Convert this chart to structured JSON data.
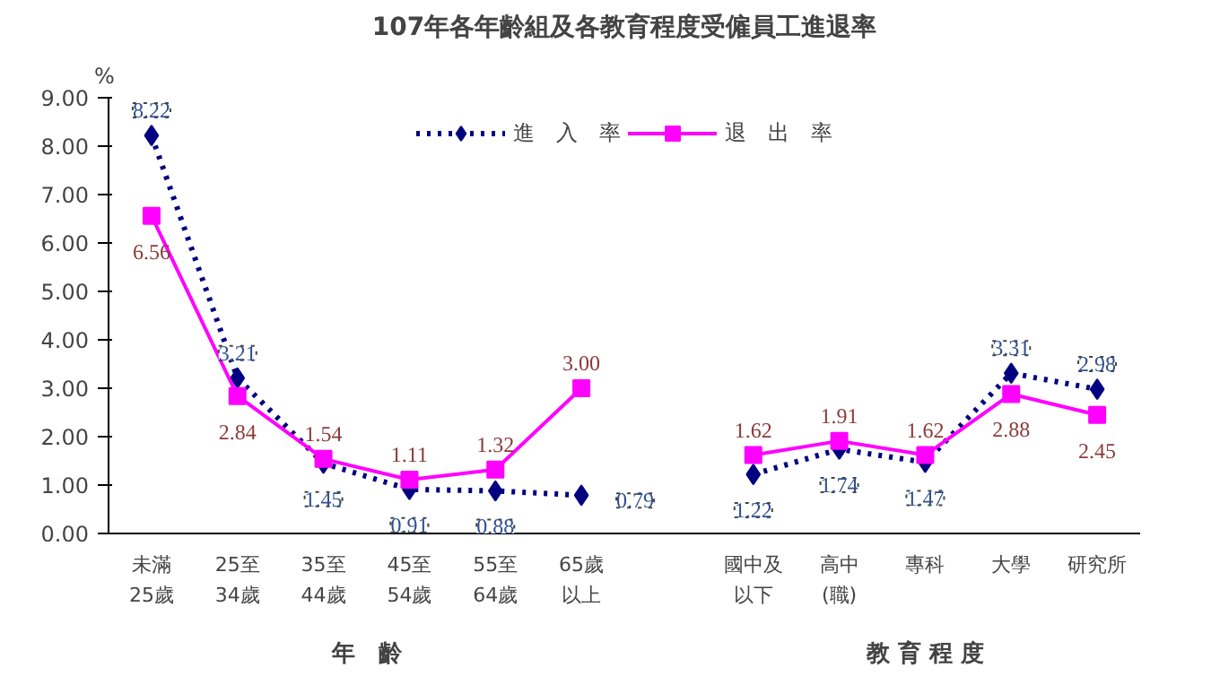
{
  "chart_data": {
    "type": "line",
    "title": "107年各年齡組及各教育程度受僱員工進退率",
    "ylabel": "%",
    "categories": [
      "未滿25歲",
      "25至34歲",
      "35至44歲",
      "45至54歲",
      "55至64歲",
      "65歲以上",
      null,
      "國中及以下",
      "高中(職)",
      "專科",
      "大學",
      "研究所"
    ],
    "series": [
      {
        "name": "進　入　率",
        "color": "#000080",
        "marker": "diamond",
        "line_style": "dotted",
        "values": [
          8.22,
          3.21,
          1.45,
          0.91,
          0.88,
          0.79,
          null,
          1.22,
          1.74,
          1.47,
          3.31,
          2.98
        ],
        "value_labels": [
          "8.22",
          "3.21",
          "1.45",
          "0.91",
          "0.88",
          "0.79",
          null,
          "1.22",
          "1.74",
          "1.47",
          "3.31",
          "2.98"
        ]
      },
      {
        "name": "退　出　率",
        "color": "#ff00ff",
        "marker": "square",
        "line_style": "solid",
        "values": [
          6.56,
          2.84,
          1.54,
          1.11,
          1.32,
          3.0,
          null,
          1.62,
          1.91,
          1.62,
          2.88,
          2.45
        ],
        "value_labels": [
          "6.56",
          "2.84",
          "1.54",
          "1.11",
          "1.32",
          "3.00",
          null,
          "1.62",
          "1.91",
          "1.62",
          "2.88",
          "2.45"
        ]
      }
    ],
    "ylim": [
      0,
      9
    ],
    "yticks": [
      {
        "value": 0,
        "label": "0.00"
      },
      {
        "value": 1,
        "label": "1.00"
      },
      {
        "value": 2,
        "label": "2.00"
      },
      {
        "value": 3,
        "label": "3.00"
      },
      {
        "value": 4,
        "label": "4.00"
      },
      {
        "value": 5,
        "label": "5.00"
      },
      {
        "value": 6,
        "label": "6.00"
      },
      {
        "value": 7,
        "label": "7.00"
      },
      {
        "value": 8,
        "label": "8.00"
      },
      {
        "value": 9,
        "label": "9.00"
      }
    ],
    "annotations": [
      "年　齡",
      "教 育 程 度"
    ],
    "grid": false,
    "legend": "top"
  }
}
